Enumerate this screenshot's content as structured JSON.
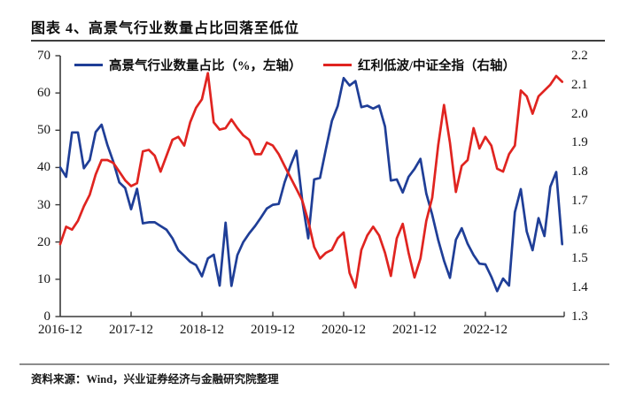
{
  "header": {
    "title": "图表 4、高景气行业数量占比回落至低位"
  },
  "footer": {
    "source_text": "资料来源：Wind，兴业证券经济与金融研究院整理"
  },
  "colors": {
    "blue_series": "#1f3e97",
    "red_series": "#e02420",
    "axis": "#3a3a3a",
    "text": "#141414"
  },
  "legend": [
    {
      "label": "高景气行业数量占比（%，左轴）",
      "color": "#1f3e97"
    },
    {
      "label": "红利低波/中证全指（右轴）",
      "color": "#e02420"
    }
  ],
  "chart_data": {
    "type": "line",
    "title": "高景气行业数量占比回落至低位",
    "x_start": "2016-12",
    "x_freq": "monthly",
    "x_tick_labels": [
      "2016-12",
      "2017-12",
      "2018-12",
      "2019-12",
      "2020-12",
      "2021-12",
      "2022-12"
    ],
    "left_axis": {
      "min": 0,
      "max": 70,
      "ticks": [
        0,
        10,
        20,
        30,
        40,
        50,
        60,
        70
      ]
    },
    "right_axis": {
      "min": 1.3,
      "max": 2.2,
      "ticks": [
        1.3,
        1.4,
        1.5,
        1.6,
        1.7,
        1.8,
        1.9,
        2.0,
        2.1,
        2.2
      ]
    },
    "grid": false,
    "legend_position": "top",
    "series": [
      {
        "name": "高景气行业数量占比（%，左轴）",
        "axis": "left",
        "color": "#1f3e97",
        "values": [
          40,
          37.5,
          49.4,
          49.4,
          39.8,
          42,
          49.5,
          51.5,
          46,
          41.5,
          36,
          34.5,
          28.8,
          34.3,
          25,
          25.3,
          25.3,
          24.3,
          23.3,
          21,
          17.8,
          16.3,
          14.7,
          13.8,
          10.8,
          15.6,
          16.6,
          8.3,
          25.2,
          8.2,
          16.5,
          20,
          22.3,
          24.3,
          26.6,
          29,
          30,
          30.2,
          36,
          40.5,
          44.5,
          31,
          21,
          36.8,
          37.2,
          45,
          52.5,
          56.5,
          64,
          62,
          63.2,
          56.2,
          56.6,
          55.8,
          56.6,
          51,
          36.5,
          36.8,
          33.3,
          37.5,
          39.6,
          42.3,
          33,
          27.3,
          20.6,
          15,
          10.4,
          20.6,
          23.7,
          19.5,
          16.5,
          14.2,
          14,
          10.7,
          6.8,
          10.2,
          8.3,
          28,
          34.2,
          22.8,
          17.8,
          26.4,
          21.6,
          34.8,
          38.8,
          19.4
        ]
      },
      {
        "name": "红利低波/中证全指（右轴）",
        "axis": "right",
        "color": "#e02420",
        "values": [
          1.55,
          1.61,
          1.6,
          1.63,
          1.68,
          1.72,
          1.79,
          1.84,
          1.84,
          1.83,
          1.8,
          1.77,
          1.75,
          1.76,
          1.87,
          1.875,
          1.855,
          1.8,
          1.855,
          1.91,
          1.92,
          1.89,
          1.97,
          2.02,
          2.05,
          2.14,
          1.97,
          1.945,
          1.95,
          1.98,
          1.95,
          1.925,
          1.91,
          1.86,
          1.86,
          1.9,
          1.89,
          1.86,
          1.82,
          1.78,
          1.74,
          1.7,
          1.63,
          1.54,
          1.5,
          1.52,
          1.53,
          1.57,
          1.59,
          1.45,
          1.4,
          1.53,
          1.58,
          1.61,
          1.58,
          1.52,
          1.44,
          1.57,
          1.62,
          1.52,
          1.435,
          1.5,
          1.63,
          1.71,
          1.89,
          2.03,
          1.9,
          1.73,
          1.82,
          1.84,
          1.95,
          1.88,
          1.92,
          1.89,
          1.81,
          1.8,
          1.86,
          1.89,
          2.08,
          2.06,
          2.0,
          2.06,
          2.08,
          2.1,
          2.13,
          2.11
        ]
      }
    ]
  }
}
